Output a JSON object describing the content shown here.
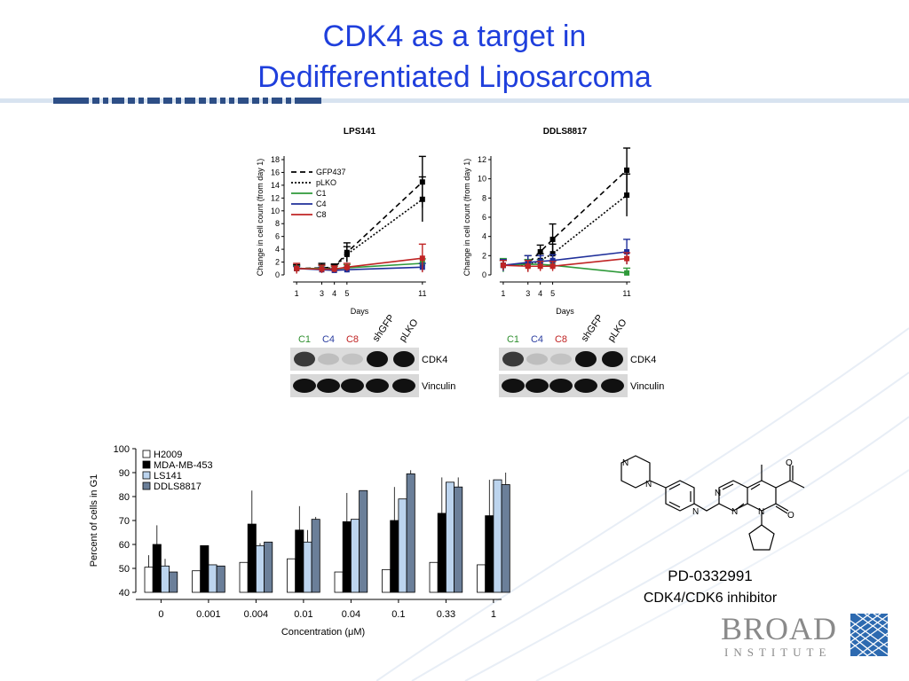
{
  "slide": {
    "title_line1": "CDK4 as a target in",
    "title_line2": "Dedifferentiated Liposarcoma",
    "title_color": "#1f3fdc"
  },
  "compound": {
    "name": "PD-0332991",
    "description": "CDK4/CDK6 inhibitor",
    "atoms": {
      "N": "N",
      "O": "O"
    }
  },
  "logo": {
    "name": "BROAD",
    "subtitle": "INSTITUTE"
  },
  "blots": [
    {
      "lanes": [
        {
          "label": "C1",
          "color": "#2f8f2f"
        },
        {
          "label": "C4",
          "color": "#2b3ea0"
        },
        {
          "label": "C8",
          "color": "#c02222"
        },
        {
          "label": "shGFP",
          "color": "#000000"
        },
        {
          "label": "pLKO",
          "color": "#000000"
        }
      ],
      "rows": [
        "CDK4",
        "Vinculin"
      ]
    },
    {
      "lanes": [
        {
          "label": "C1",
          "color": "#2f8f2f"
        },
        {
          "label": "C4",
          "color": "#2b3ea0"
        },
        {
          "label": "C8",
          "color": "#c02222"
        },
        {
          "label": "shGFP",
          "color": "#000000"
        },
        {
          "label": "pLKO",
          "color": "#000000"
        }
      ],
      "rows": [
        "CDK4",
        "Vinculin"
      ]
    }
  ],
  "chart_data": [
    {
      "type": "line",
      "title": "LPS141",
      "xlabel": "Days",
      "ylabel": "Change in cell count (from day 1)",
      "x_ticks": [
        1,
        3,
        4,
        5,
        11
      ],
      "y_ticks": [
        0,
        2,
        4,
        6,
        8,
        10,
        12,
        14,
        16,
        18
      ],
      "xlim": [
        0,
        12
      ],
      "ylim": [
        0,
        18
      ],
      "legend_position": "top-left",
      "series": [
        {
          "name": "GFP437",
          "style": "dashed",
          "color": "#000000",
          "x": [
            1,
            3,
            4,
            5,
            11
          ],
          "y": [
            1,
            1.1,
            1.2,
            3.5,
            14.5
          ],
          "err": [
            0.6,
            0.7,
            0.5,
            1.5,
            4
          ]
        },
        {
          "name": "pLKO",
          "style": "dotted",
          "color": "#000000",
          "x": [
            1,
            3,
            4,
            5,
            11
          ],
          "y": [
            1,
            1,
            1.1,
            3.2,
            11.8
          ],
          "err": [
            0.5,
            0.6,
            0.5,
            1.2,
            3.5
          ]
        },
        {
          "name": "C1",
          "style": "solid",
          "color": "#2f9a3a",
          "x": [
            1,
            3,
            4,
            5,
            11
          ],
          "y": [
            1,
            1,
            0.9,
            1.1,
            1.8
          ],
          "err": [
            0.4,
            0.5,
            0.4,
            0.5,
            0.7
          ]
        },
        {
          "name": "C4",
          "style": "solid",
          "color": "#1f2f9a",
          "x": [
            1,
            3,
            4,
            5,
            11
          ],
          "y": [
            1,
            0.8,
            0.7,
            0.8,
            1.2
          ],
          "err": [
            0.3,
            0.4,
            0.3,
            0.4,
            0.6
          ]
        },
        {
          "name": "C8",
          "style": "solid",
          "color": "#c02424",
          "x": [
            1,
            3,
            4,
            5,
            11
          ],
          "y": [
            1,
            0.9,
            0.9,
            1.2,
            2.6
          ],
          "err": [
            0.8,
            0.6,
            0.5,
            0.6,
            2.2
          ]
        }
      ]
    },
    {
      "type": "line",
      "title": "DDLS8817",
      "xlabel": "Days",
      "ylabel": "Change in cell count (from day 1)",
      "x_ticks": [
        1,
        3,
        4,
        5,
        11
      ],
      "y_ticks": [
        0,
        2,
        4,
        6,
        8,
        10,
        12
      ],
      "xlim": [
        0,
        12
      ],
      "ylim": [
        0,
        12
      ],
      "legend_position": "none",
      "series": [
        {
          "name": "GFP437",
          "style": "dashed",
          "color": "#000000",
          "x": [
            1,
            3,
            4,
            5,
            11
          ],
          "y": [
            1,
            1.2,
            2.4,
            3.7,
            10.9
          ],
          "err": [
            0.5,
            0.8,
            0.7,
            1.6,
            2.3
          ]
        },
        {
          "name": "pLKO",
          "style": "dotted",
          "color": "#000000",
          "x": [
            1,
            3,
            4,
            5,
            11
          ],
          "y": [
            1,
            1.0,
            1.5,
            2.2,
            8.3
          ],
          "err": [
            0.5,
            0.6,
            0.7,
            1.0,
            2.2
          ]
        },
        {
          "name": "C1",
          "style": "solid",
          "color": "#2f9a3a",
          "x": [
            1,
            3,
            4,
            5,
            11
          ],
          "y": [
            1,
            1.1,
            1.1,
            1.0,
            0.2
          ],
          "err": [
            0.7,
            0.5,
            0.5,
            0.4,
            0.5
          ]
        },
        {
          "name": "C4",
          "style": "solid",
          "color": "#1f2f9a",
          "x": [
            1,
            3,
            4,
            5,
            11
          ],
          "y": [
            1,
            1.3,
            1.4,
            1.5,
            2.4
          ],
          "err": [
            0.6,
            0.7,
            0.6,
            0.6,
            1.3
          ]
        },
        {
          "name": "C8",
          "style": "solid",
          "color": "#c02424",
          "x": [
            1,
            3,
            4,
            5,
            11
          ],
          "y": [
            1,
            0.9,
            0.9,
            0.9,
            1.7
          ],
          "err": [
            0.5,
            0.6,
            0.5,
            0.5,
            0.6
          ]
        }
      ]
    },
    {
      "type": "bar",
      "title": "",
      "xlabel": "Concentration (μM)",
      "ylabel": "Percent of cells in G1",
      "categories": [
        "0",
        "0.001",
        "0.004",
        "0.01",
        "0.04",
        "0.1",
        "0.33",
        "1"
      ],
      "y_ticks": [
        40,
        50,
        60,
        70,
        80,
        90,
        100
      ],
      "ylim": [
        40,
        100
      ],
      "legend_position": "top-left",
      "series": [
        {
          "name": "H2009",
          "color": "#ffffff",
          "values": [
            50.5,
            49,
            52.5,
            54,
            48.5,
            49.5,
            52.5,
            51.5
          ],
          "err": [
            5,
            0,
            0,
            0,
            0,
            0,
            0,
            0
          ]
        },
        {
          "name": "MDA-MB-453",
          "color": "#000000",
          "values": [
            60,
            59.5,
            68.5,
            66,
            69.5,
            70,
            73,
            72
          ],
          "err": [
            8,
            0,
            14,
            10,
            12,
            14,
            15,
            15
          ]
        },
        {
          "name": "LS141",
          "color": "#bcd4ee",
          "values": [
            51,
            51.5,
            59.5,
            61,
            70.5,
            79,
            86,
            87
          ],
          "err": [
            3,
            0,
            1,
            5,
            0,
            0,
            0,
            0
          ]
        },
        {
          "name": "DDLS8817",
          "color": "#6b7f99",
          "values": [
            48.5,
            51,
            61,
            70.5,
            82.5,
            89.5,
            84,
            85
          ],
          "err": [
            0,
            0,
            0,
            1,
            0,
            1.5,
            4,
            5
          ]
        }
      ]
    }
  ]
}
